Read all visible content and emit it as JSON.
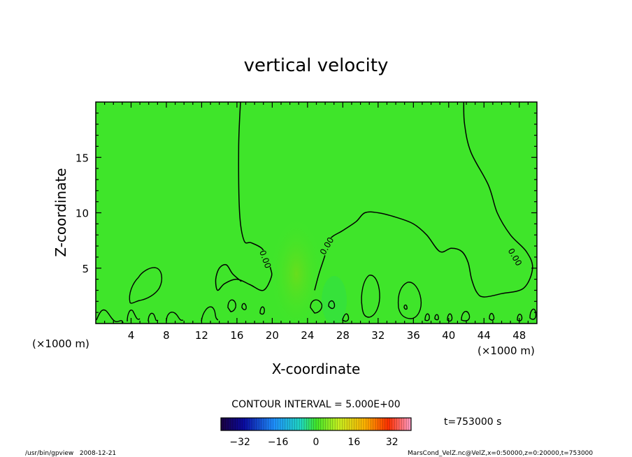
{
  "chart_data": {
    "type": "contour",
    "title": "vertical velocity",
    "xlabel": "X-coordinate",
    "ylabel": "Z-coordinate",
    "x_unit_label": "(×1000 m)",
    "x_unit_label_right": "(×1000 m)",
    "xlim": [
      0,
      50
    ],
    "ylim": [
      0,
      20
    ],
    "x_ticks": [
      "4",
      "8",
      "12",
      "16",
      "20",
      "24",
      "28",
      "32",
      "36",
      "40",
      "44",
      "48"
    ],
    "y_ticks": [
      "5",
      "10",
      "15"
    ],
    "contour_interval_text": "CONTOUR INTERVAL = 5.000E+00",
    "contour_labels": [
      "0.00",
      "0.00",
      "0.00"
    ],
    "zero_contour_main": [
      [
        16.4,
        20
      ],
      [
        16.2,
        16
      ],
      [
        16.3,
        10
      ],
      [
        16.8,
        7.5
      ],
      [
        17.6,
        7.3
      ],
      [
        18.8,
        6.8
      ],
      [
        19.4,
        6.0
      ],
      [
        19.8,
        5.0
      ],
      [
        19.9,
        4.2
      ],
      [
        19.0,
        3.0
      ],
      [
        17.5,
        3.5
      ],
      [
        16.0,
        4.0
      ],
      [
        14.6,
        3.6
      ],
      [
        13.8,
        3.0
      ],
      [
        13.6,
        4.0
      ],
      [
        14.0,
        5.0
      ],
      [
        14.8,
        5.3
      ],
      [
        15.5,
        4.5
      ],
      [
        16.5,
        3.8
      ]
    ],
    "zero_contour_mid": [
      [
        24.8,
        3.0
      ],
      [
        25.3,
        4.5
      ],
      [
        26.0,
        6.2
      ],
      [
        26.5,
        7.6
      ],
      [
        28.0,
        8.4
      ],
      [
        29.5,
        9.2
      ],
      [
        30.5,
        10.0
      ],
      [
        32.0,
        10.0
      ],
      [
        34.0,
        9.6
      ],
      [
        36.0,
        9.0
      ],
      [
        37.5,
        8.0
      ],
      [
        39.0,
        6.5
      ],
      [
        40.3,
        6.8
      ],
      [
        41.5,
        6.5
      ],
      [
        42.2,
        5.5
      ],
      [
        42.6,
        4.0
      ],
      [
        43.2,
        2.8
      ],
      [
        44.0,
        2.4
      ],
      [
        46.0,
        2.7
      ],
      [
        48.5,
        3.2
      ],
      [
        49.5,
        5.0
      ],
      [
        48.8,
        6.5
      ],
      [
        47.0,
        8.0
      ],
      [
        45.5,
        10.0
      ],
      [
        44.5,
        12.5
      ],
      [
        42.5,
        15.5
      ],
      [
        41.8,
        18.0
      ],
      [
        41.7,
        20
      ]
    ],
    "colorbar": {
      "ticks": [
        "-32",
        "-16",
        "0",
        "16",
        "32"
      ],
      "range": [
        -40,
        40
      ]
    },
    "time_label": "t=753000 s",
    "grid": false,
    "legend": "none"
  },
  "footer": {
    "left": "/usr/bin/gpview   2008-12-21",
    "right": "MarsCond_VelZ.nc@VelZ,x=0:50000,z=0:20000,t=753000"
  }
}
